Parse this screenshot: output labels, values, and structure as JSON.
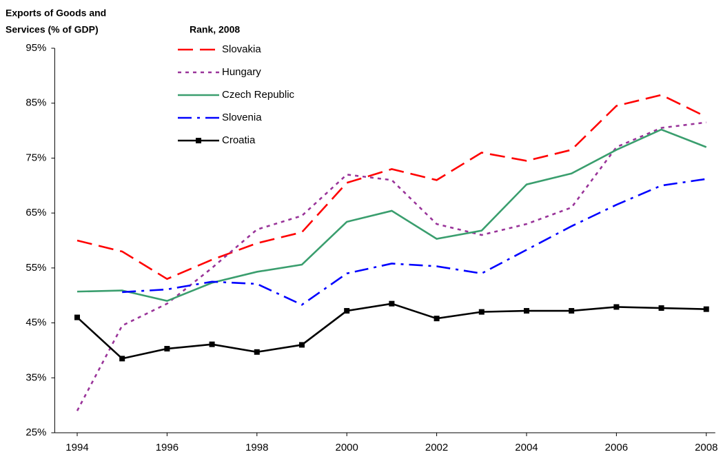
{
  "chart_data": {
    "type": "line",
    "y_label": [
      "Exports of Goods and",
      "Services (% of GDP)"
    ],
    "legend_title": "Rank, 2008",
    "x": [
      1994,
      1995,
      1996,
      1997,
      1998,
      1999,
      2000,
      2001,
      2002,
      2003,
      2004,
      2005,
      2006,
      2007,
      2008
    ],
    "series": [
      {
        "name": "Slovakia",
        "color": "#ff0000",
        "style": "dashed",
        "values": [
          60,
          58,
          53,
          56.5,
          59.5,
          61.5,
          70.5,
          73,
          71,
          76,
          74.5,
          76.5,
          84.5,
          86.5,
          82.5
        ]
      },
      {
        "name": "Hungary",
        "color": "#993399",
        "style": "dotted",
        "values": [
          29,
          44.5,
          48.5,
          55,
          62,
          64.5,
          72,
          71,
          63,
          61,
          63,
          66,
          77,
          80.5,
          81.5
        ]
      },
      {
        "name": "Czech Republic",
        "color": "#3a9e6e",
        "style": "solid",
        "values": [
          50.7,
          50.9,
          49,
          52.3,
          54.3,
          55.6,
          63.4,
          65.4,
          60.3,
          61.8,
          70.2,
          72.2,
          76.5,
          80.2,
          77
        ]
      },
      {
        "name": "Slovenia",
        "color": "#0000ff",
        "style": "dashdot",
        "values": [
          null,
          50.6,
          51.1,
          52.5,
          52.1,
          48.3,
          54,
          55.8,
          55.3,
          54,
          58.3,
          62.6,
          66.5,
          70,
          71.2
        ]
      },
      {
        "name": "Croatia",
        "color": "#000000",
        "style": "solid",
        "marker": "square",
        "values": [
          46,
          38.5,
          40.3,
          41.1,
          39.7,
          41,
          47.2,
          48.5,
          45.8,
          47,
          47.2,
          47.2,
          47.9,
          47.7,
          47.5
        ]
      }
    ],
    "xlim": [
      1993.5,
      2008.2
    ],
    "xticks": [
      1994,
      1996,
      1998,
      2000,
      2002,
      2004,
      2006,
      2008
    ],
    "ylim": [
      25,
      95
    ],
    "yticks": [
      {
        "value": 25,
        "label": "25%"
      },
      {
        "value": 35,
        "label": "35%"
      },
      {
        "value": 45,
        "label": "45%"
      },
      {
        "value": 55,
        "label": "55%"
      },
      {
        "value": 65,
        "label": "65%"
      },
      {
        "value": 75,
        "label": "75%"
      },
      {
        "value": 85,
        "label": "85%"
      },
      {
        "value": 95,
        "label": "95%"
      }
    ]
  }
}
